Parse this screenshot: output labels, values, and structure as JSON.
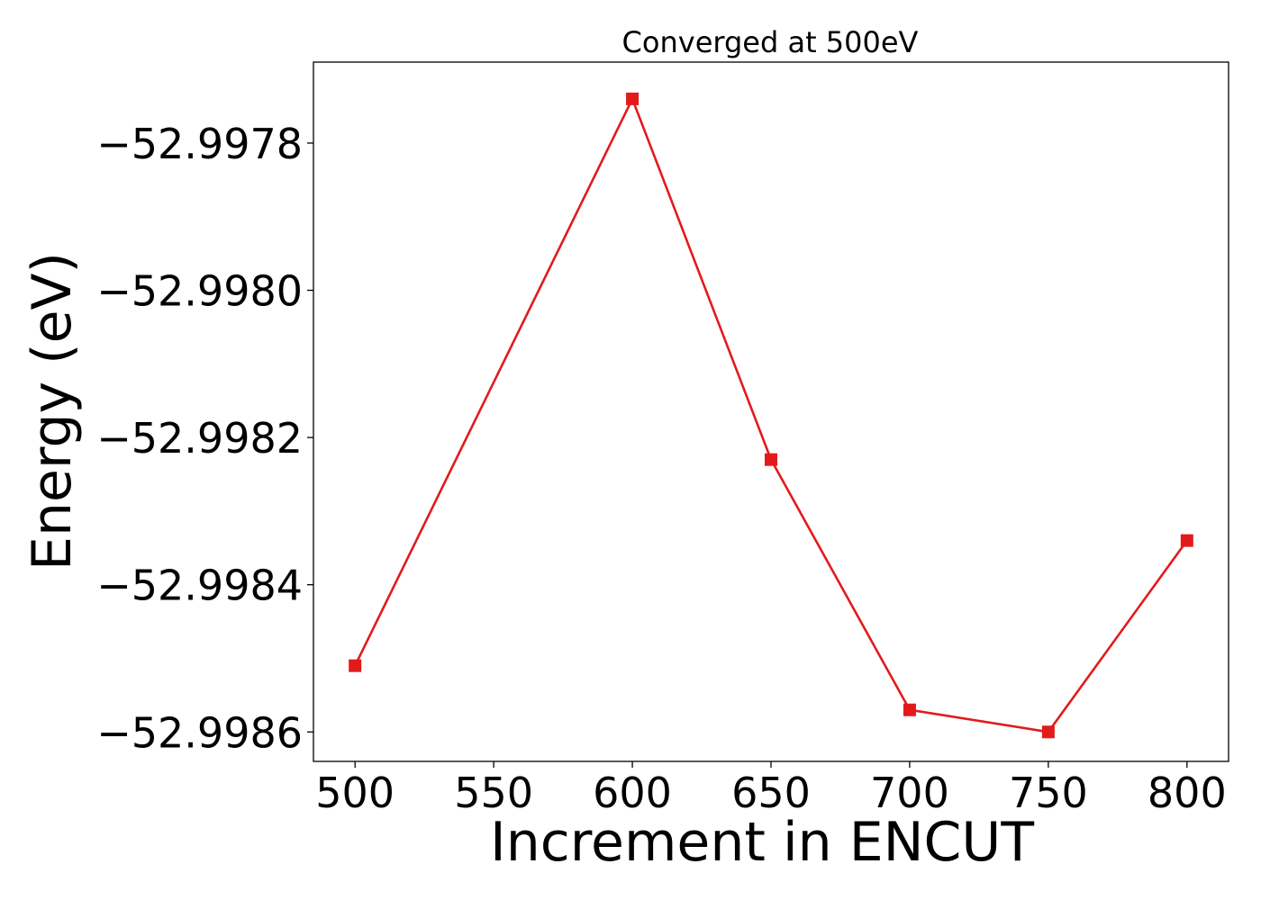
{
  "chart_data": {
    "type": "line",
    "title": "Converged at 500eV",
    "xlabel": "Increment in ENCUT",
    "ylabel": "Energy (eV)",
    "x": [
      500,
      600,
      650,
      700,
      750,
      800
    ],
    "series": [
      {
        "values": [
          -52.99851,
          -52.99774,
          -52.99823,
          -52.99857,
          -52.9986,
          -52.99834
        ],
        "color": "#e31a1c",
        "marker": "square"
      }
    ],
    "xticks": [
      500,
      550,
      600,
      650,
      700,
      750,
      800
    ],
    "xtick_labels": [
      "500",
      "550",
      "600",
      "650",
      "700",
      "750",
      "800"
    ],
    "yticks": [
      -52.9978,
      -52.998,
      -52.9982,
      -52.9984,
      -52.9986
    ],
    "ytick_labels": [
      "−52.9978",
      "−52.9980",
      "−52.9982",
      "−52.9984",
      "−52.9986"
    ],
    "xlim": [
      485,
      815
    ],
    "ylim": [
      -52.99864,
      -52.99769
    ],
    "grid": false,
    "legend": "none"
  }
}
